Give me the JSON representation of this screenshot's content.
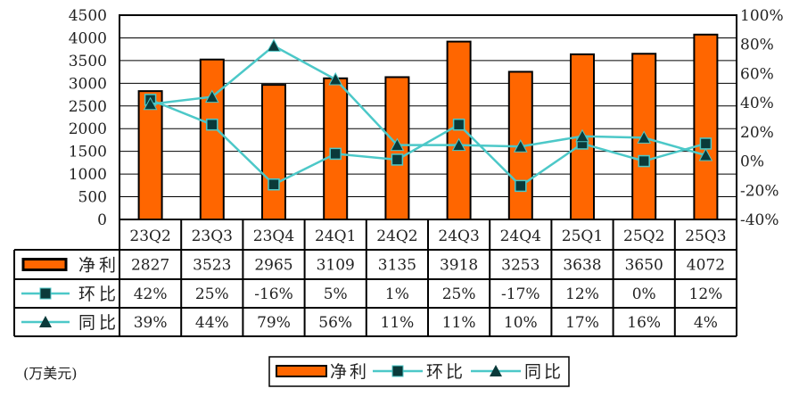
{
  "chart_data": {
    "type": "bar",
    "categories": [
      "23Q2",
      "23Q3",
      "23Q4",
      "24Q1",
      "24Q2",
      "24Q3",
      "24Q4",
      "25Q1",
      "25Q2",
      "25Q3"
    ],
    "series": [
      {
        "name": "净利",
        "kind": "bar",
        "axis": "left",
        "values": [
          2827,
          3523,
          2965,
          3109,
          3135,
          3918,
          3253,
          3638,
          3650,
          4072
        ],
        "labels": [
          "2827",
          "3523",
          "2965",
          "3109",
          "3135",
          "3918",
          "3253",
          "3638",
          "3650",
          "4072"
        ]
      },
      {
        "name": "环比",
        "kind": "line",
        "marker": "square",
        "axis": "right",
        "values": [
          42,
          25,
          -16,
          5,
          1,
          25,
          -17,
          12,
          0,
          12
        ],
        "labels": [
          "42%",
          "25%",
          "-16%",
          "5%",
          "1%",
          "25%",
          "-17%",
          "12%",
          "0%",
          "12%"
        ]
      },
      {
        "name": "同比",
        "kind": "line",
        "marker": "triangle",
        "axis": "right",
        "values": [
          39,
          44,
          79,
          56,
          11,
          11,
          10,
          17,
          16,
          4
        ],
        "labels": [
          "39%",
          "44%",
          "79%",
          "56%",
          "11%",
          "11%",
          "10%",
          "17%",
          "16%",
          "4%"
        ]
      }
    ],
    "ylim": [
      0,
      4500
    ],
    "y_ticks": [
      "0",
      "500",
      "1000",
      "1500",
      "2000",
      "2500",
      "3000",
      "3500",
      "4000",
      "4500"
    ],
    "y2lim": [
      -40,
      100
    ],
    "y2_ticks": [
      "-40%",
      "-20%",
      "0%",
      "20%",
      "40%",
      "60%",
      "80%",
      "100%"
    ],
    "unit_label": "(万美元)",
    "grid": true,
    "legend": "bottom",
    "data_table": true,
    "colors": {
      "bar": "#ff6600",
      "line": "#4cc8c8",
      "marker": "#0a3a3a"
    }
  }
}
